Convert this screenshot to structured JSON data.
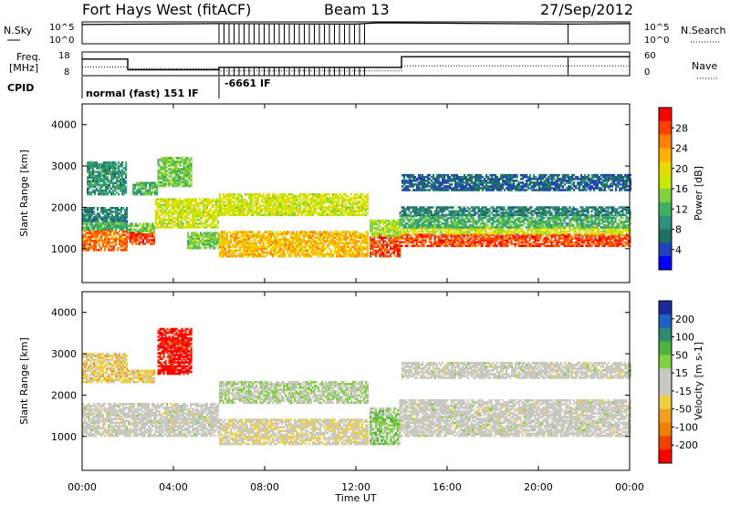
{
  "header": {
    "title": "Fort Hays West (fitACF)",
    "beam": "Beam 13",
    "date": "27/Sep/2012"
  },
  "top_panels": {
    "nsky_label": "N.Sky",
    "nsky_ticks": [
      "10^5",
      "10^0"
    ],
    "nsearch_label": "N.Search",
    "nsearch_ticks": [
      "10^5",
      "10^0"
    ],
    "freq_label_1": "Freq.",
    "freq_label_2": "[MHz]",
    "freq_ticks": [
      "18",
      "8"
    ],
    "nave_label": "Nave",
    "nave_ticks": [
      "60",
      "0"
    ],
    "cpid_label": "CPID",
    "cpid_mode_1": "normal (fast) 151 IF",
    "cpid_mode_2": "-6661 IF"
  },
  "power_panel": {
    "ylabel": "Slant Range [km]",
    "yticks": [
      "4000",
      "3000",
      "2000",
      "1000"
    ],
    "cbar_label": "Power [dB]",
    "cbar_ticks": [
      "28",
      "24",
      "20",
      "16",
      "12",
      "8",
      "4"
    ],
    "cbar_colors": [
      "#ff0000",
      "#ff4000",
      "#ff8000",
      "#ffb000",
      "#e8d800",
      "#c8e800",
      "#80d040",
      "#40b060",
      "#309080",
      "#207060",
      "#2040c0",
      "#0000ff"
    ]
  },
  "velocity_panel": {
    "ylabel": "Slant Range [km]",
    "yticks": [
      "4000",
      "3000",
      "2000",
      "1000"
    ],
    "cbar_label": "Velocity [m s-1]",
    "cbar_ticks": [
      "200",
      "100",
      "50",
      "15",
      "-15",
      "-50",
      "-100",
      "-200"
    ],
    "cbar_colors": [
      "#1a2a9a",
      "#2060c0",
      "#308a70",
      "#50b040",
      "#80d040",
      "#c8c8c0",
      "#c8c8c0",
      "#f0d040",
      "#f0a020",
      "#f08000",
      "#f04000",
      "#ff0000"
    ]
  },
  "xaxis": {
    "label": "Time UT",
    "ticks": [
      "00:00",
      "04:00",
      "08:00",
      "12:00",
      "16:00",
      "20:00",
      "00:00"
    ]
  },
  "chart_data": [
    {
      "type": "line",
      "name": "N.Sky / N.Search",
      "x_hours": [
        0,
        6,
        12,
        13,
        21.3,
        24
      ],
      "nsky_log": [
        4.4,
        4.6,
        4.5,
        4.8,
        4.5,
        4.6
      ],
      "ylim_log": [
        0,
        5
      ]
    },
    {
      "type": "line",
      "name": "Freq. [MHz] / Nave",
      "freq_steps": [
        [
          0,
          2,
          15
        ],
        [
          2,
          6,
          10.5
        ],
        [
          6,
          14,
          11.5
        ],
        [
          14,
          24,
          16
        ]
      ],
      "nave_steps": [
        [
          0,
          2,
          22
        ],
        [
          2,
          6,
          18
        ],
        [
          6,
          14,
          12
        ],
        [
          14,
          24,
          25
        ]
      ],
      "freq_ylim": [
        8,
        18
      ],
      "nave_ylim": [
        0,
        60
      ],
      "cpid_segments": [
        [
          0,
          6,
          "normal (fast) 151 IF"
        ],
        [
          6,
          24,
          "-6661 IF"
        ]
      ]
    },
    {
      "type": "heatmap",
      "name": "Power [dB]",
      "xlim_hours": [
        0,
        24
      ],
      "ylim_km": [
        180,
        4500
      ],
      "clim": [
        0,
        32
      ],
      "bands": [
        [
          0.0,
          2.0,
          950,
          1450,
          26
        ],
        [
          0.0,
          2.0,
          1450,
          1650,
          12
        ],
        [
          0.0,
          2.0,
          1650,
          2000,
          8
        ],
        [
          0.2,
          1.9,
          2300,
          3100,
          10
        ],
        [
          2.0,
          3.2,
          1100,
          1400,
          28
        ],
        [
          2.0,
          3.2,
          1400,
          1600,
          14
        ],
        [
          2.2,
          3.3,
          2300,
          2600,
          12
        ],
        [
          3.2,
          6.0,
          1500,
          2200,
          18
        ],
        [
          3.3,
          4.8,
          2500,
          3200,
          14
        ],
        [
          4.6,
          6.0,
          1000,
          1400,
          14
        ],
        [
          6.0,
          12.5,
          800,
          1400,
          22
        ],
        [
          6.0,
          12.5,
          1800,
          2300,
          18
        ],
        [
          12.6,
          13.9,
          800,
          1300,
          28
        ],
        [
          12.6,
          13.9,
          1300,
          1700,
          16
        ],
        [
          13.9,
          24.0,
          1050,
          1350,
          28
        ],
        [
          13.9,
          24.0,
          1350,
          1500,
          18
        ],
        [
          13.9,
          24.0,
          1500,
          1800,
          12
        ],
        [
          13.9,
          24.0,
          1800,
          2000,
          8
        ],
        [
          14.0,
          24.0,
          2400,
          2800,
          6
        ]
      ]
    },
    {
      "type": "heatmap",
      "name": "Velocity [m s-1]",
      "xlim_hours": [
        0,
        24
      ],
      "ylim_km": [
        180,
        4500
      ],
      "clim": [
        -250,
        250
      ],
      "bands": [
        [
          0.0,
          6.0,
          1000,
          1800,
          0
        ],
        [
          0.0,
          2.0,
          2300,
          3000,
          -60
        ],
        [
          2.0,
          3.2,
          2300,
          2600,
          -60
        ],
        [
          3.3,
          4.8,
          2500,
          3600,
          -230
        ],
        [
          6.0,
          12.5,
          800,
          1400,
          -30
        ],
        [
          6.0,
          12.5,
          1800,
          2300,
          30
        ],
        [
          12.6,
          13.9,
          800,
          1700,
          60
        ],
        [
          13.9,
          24.0,
          1000,
          1900,
          0
        ],
        [
          14.0,
          24.0,
          2400,
          2800,
          0
        ]
      ]
    }
  ]
}
